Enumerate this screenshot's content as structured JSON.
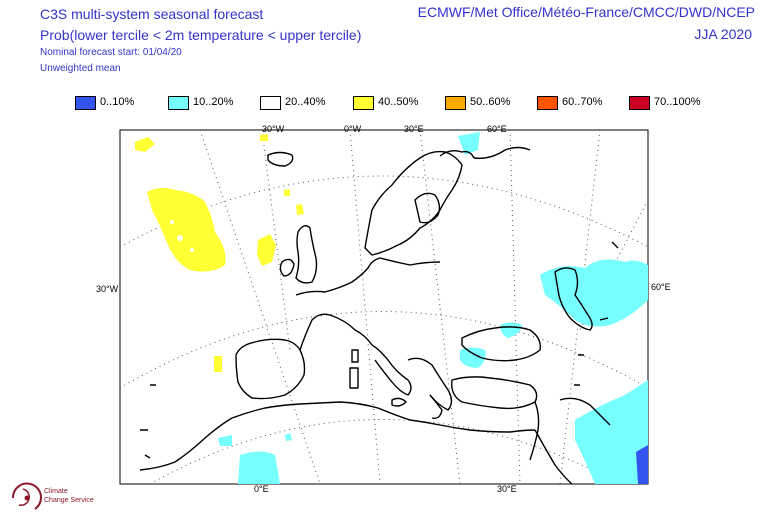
{
  "header": {
    "title": "C3S multi-system seasonal forecast",
    "subtitle": "Prob(lower tercile < 2m temperature < upper tercile)",
    "start": "Nominal forecast start: 01/04/20",
    "mean": "Unweighted mean",
    "systems": "ECMWF/Met Office/Météo-France/CMCC/DWD/NCEP",
    "period": "JJA 2020"
  },
  "legend": [
    {
      "label": "0..10%",
      "color": "#3355ee"
    },
    {
      "label": "10..20%",
      "color": "#77ffff"
    },
    {
      "label": "20..40%",
      "color": "#ffffff"
    },
    {
      "label": "40..50%",
      "color": "#ffff33"
    },
    {
      "label": "50..60%",
      "color": "#ffaa00"
    },
    {
      "label": "60..70%",
      "color": "#ff5500"
    },
    {
      "label": "70..100%",
      "color": "#cc0022"
    }
  ],
  "gridlabels": {
    "top": [
      "30°W",
      "0°W",
      "30°E",
      "60°E"
    ],
    "left": "30°W",
    "right": "60°E",
    "bottom": [
      "0°E",
      "30°E"
    ]
  },
  "logo": {
    "line1": "Climate",
    "line2": "Change Service"
  },
  "colors": {
    "header_text": "#3333cc",
    "coast": "#000000",
    "grid": "#555555"
  }
}
